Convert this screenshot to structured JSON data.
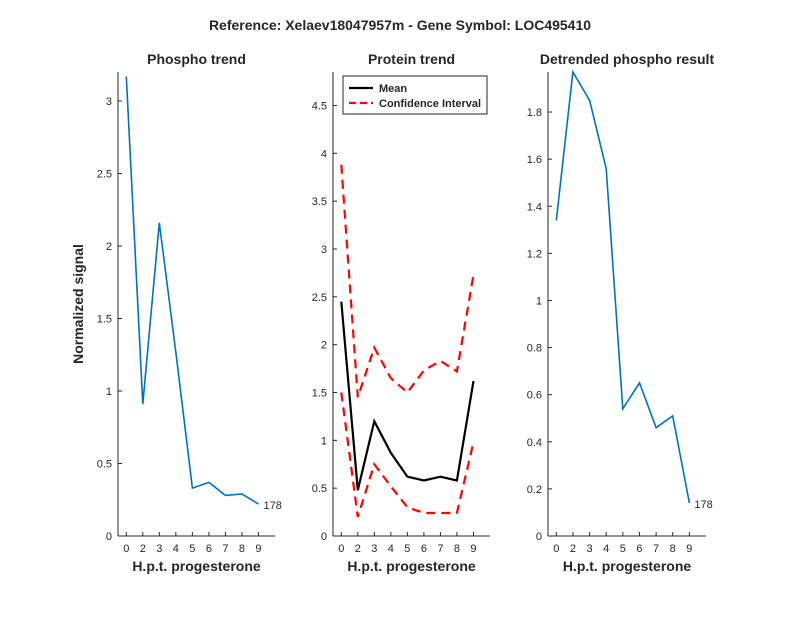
{
  "figure": {
    "title": "Reference:  Xelaev18047957m - Gene Symbol:  LOC495410"
  },
  "chart_data": [
    {
      "type": "line",
      "title": "Phospho trend",
      "xlabel": "H.p.t. progesterone",
      "ylabel": "Normalized signal",
      "categories": [
        "0",
        "2",
        "3",
        "4",
        "5",
        "6",
        "7",
        "8",
        "9"
      ],
      "xlim": [
        -0.5,
        9
      ],
      "ylim": [
        0,
        3.2
      ],
      "yticks": [
        0,
        0.5,
        1,
        1.5,
        2,
        2.5,
        3
      ],
      "ytick_labels": [
        "0",
        "0.5",
        "1",
        "1.5",
        "2",
        "2.5",
        "3"
      ],
      "series": [
        {
          "values": [
            3.17,
            0.91,
            2.16,
            1.27,
            0.33,
            0.37,
            0.28,
            0.29,
            0.22
          ],
          "color": "#0072BD",
          "style": "solid"
        }
      ],
      "end_label": "178",
      "grid": false
    },
    {
      "type": "line",
      "title": "Protein trend",
      "xlabel": "H.p.t. progesterone",
      "ylabel": "",
      "categories": [
        "0",
        "2",
        "3",
        "4",
        "5",
        "6",
        "7",
        "8",
        "9"
      ],
      "xlim": [
        -0.5,
        9
      ],
      "ylim": [
        0,
        4.85
      ],
      "yticks": [
        0,
        0.5,
        1,
        1.5,
        2,
        2.5,
        3,
        3.5,
        4,
        4.5
      ],
      "ytick_labels": [
        "0",
        "0.5",
        "1",
        "1.5",
        "2",
        "2.5",
        "3",
        "3.5",
        "4",
        "4.5"
      ],
      "series": [
        {
          "name": "Mean",
          "values": [
            2.45,
            0.48,
            1.2,
            0.87,
            0.62,
            0.58,
            0.62,
            0.58,
            1.62
          ],
          "color": "#000000",
          "style": "solid"
        },
        {
          "name": "Confidence Interval",
          "values": [
            3.88,
            1.45,
            1.97,
            1.65,
            1.5,
            1.73,
            1.83,
            1.72,
            2.73
          ],
          "color": "#FF0000",
          "style": "dashed"
        },
        {
          "name": "",
          "values": [
            1.5,
            0.2,
            0.75,
            0.52,
            0.3,
            0.24,
            0.24,
            0.24,
            0.98
          ],
          "color": "#FF0000",
          "style": "dashed"
        }
      ],
      "legend": {
        "position": "top-left",
        "entries": [
          "Mean",
          "Confidence Interval"
        ]
      },
      "grid": false
    },
    {
      "type": "line",
      "title": "Detrended phospho result",
      "xlabel": "H.p.t. progesterone",
      "ylabel": "",
      "categories": [
        "0",
        "2",
        "3",
        "4",
        "5",
        "6",
        "7",
        "8",
        "9"
      ],
      "xlim": [
        -0.5,
        9
      ],
      "ylim": [
        0,
        1.97
      ],
      "yticks": [
        0,
        0.2,
        0.4,
        0.6,
        0.8,
        1,
        1.2,
        1.4,
        1.6,
        1.8
      ],
      "ytick_labels": [
        "0",
        "0.2",
        "0.4",
        "0.6",
        "0.8",
        "1",
        "1.2",
        "1.4",
        "1.6",
        "1.8"
      ],
      "series": [
        {
          "values": [
            1.34,
            1.97,
            1.85,
            1.56,
            0.54,
            0.65,
            0.46,
            0.51,
            0.14
          ],
          "color": "#0072BD",
          "style": "solid"
        }
      ],
      "end_label": "178",
      "grid": false
    }
  ]
}
